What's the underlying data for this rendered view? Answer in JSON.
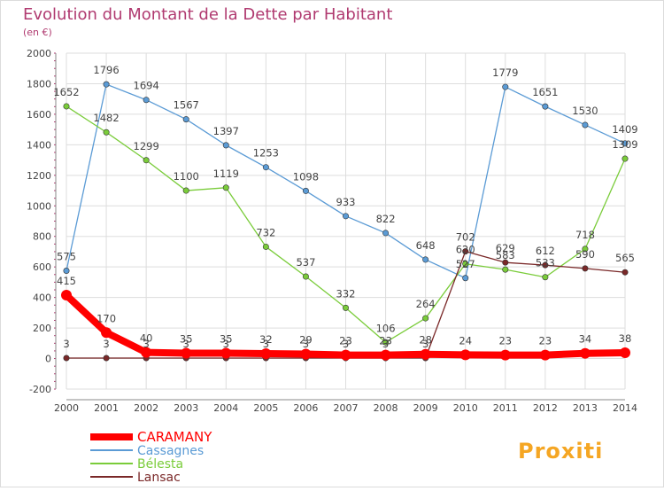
{
  "header": {
    "title": "Evolution du Montant de la Dette par Habitant",
    "subtitle": "(en €)"
  },
  "logo": {
    "text": "Proxiti"
  },
  "colors": {
    "title": "#b03a70",
    "axis": "#888888",
    "grid": "#dddddd",
    "frame": "#dcdcdc",
    "label": "#444444"
  },
  "chart_data": {
    "type": "line",
    "x": [
      2000,
      2001,
      2002,
      2003,
      2004,
      2005,
      2006,
      2007,
      2008,
      2009,
      2010,
      2011,
      2012,
      2013,
      2014
    ],
    "ylim": [
      -200,
      2000
    ],
    "yticks": [
      -200,
      0,
      200,
      400,
      600,
      800,
      1000,
      1200,
      1400,
      1600,
      1800,
      2000
    ],
    "grid": true,
    "legend_position": "bottom-left",
    "series": [
      {
        "name": "CARAMANY",
        "color": "#ff0000",
        "values": [
          415,
          170,
          40,
          35,
          35,
          32,
          29,
          23,
          23,
          28,
          24,
          23,
          23,
          34,
          38
        ]
      },
      {
        "name": "Cassagnes",
        "color": "#5b9bd5",
        "values": [
          575,
          1796,
          1694,
          1567,
          1397,
          1253,
          1098,
          933,
          822,
          648,
          527,
          1779,
          1651,
          1530,
          1409
        ]
      },
      {
        "name": "Bélesta",
        "color": "#7acc3a",
        "values": [
          1652,
          1482,
          1299,
          1100,
          1119,
          732,
          537,
          332,
          106,
          264,
          620,
          583,
          533,
          718,
          1309
        ]
      },
      {
        "name": "Lansac",
        "color": "#7a2828",
        "values": [
          3,
          3,
          3,
          3,
          3,
          3,
          3,
          3,
          3,
          3,
          702,
          629,
          612,
          590,
          565
        ]
      }
    ]
  }
}
